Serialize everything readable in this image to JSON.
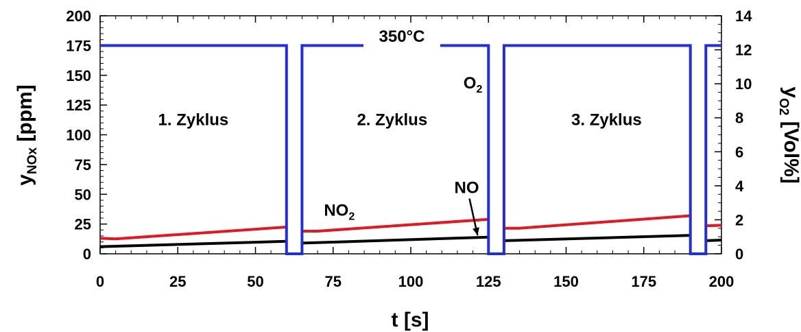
{
  "chart_data": {
    "type": "line",
    "xlabel": {
      "main": "t [s]"
    },
    "ylabel_left": {
      "main": "y",
      "sub": "NOx",
      "unit": " [ppm]"
    },
    "ylabel_right": {
      "main": "y",
      "sub": "O2",
      "unit": " [Vol%]"
    },
    "xlim": [
      0,
      200
    ],
    "ylim_left": [
      0,
      200
    ],
    "ylim_right": [
      0,
      14
    ],
    "x_ticks": [
      "0",
      "25",
      "50",
      "75",
      "100",
      "125",
      "150",
      "175",
      "200"
    ],
    "y_left_ticks": [
      "0",
      "25",
      "50",
      "75",
      "100",
      "125",
      "150",
      "175",
      "200"
    ],
    "y_right_ticks": [
      "0",
      "2",
      "4",
      "6",
      "8",
      "10",
      "12",
      "14"
    ],
    "grid": false,
    "series": [
      {
        "name": "O2",
        "axis": "right",
        "color": "#1f2ee0",
        "x": [
          0,
          60,
          60,
          65,
          65,
          125,
          125,
          130,
          130,
          190,
          190,
          195,
          195,
          200
        ],
        "y": [
          12.25,
          12.25,
          0,
          0,
          12.25,
          12.25,
          0,
          0,
          12.25,
          12.25,
          0,
          0,
          12.25,
          12.25
        ]
      },
      {
        "name": "NO2",
        "axis": "left",
        "color": "#e8141e",
        "segments": [
          {
            "x": [
              0,
              5,
              60
            ],
            "y": [
              13,
              12.5,
              22.5
            ]
          },
          {
            "x": [
              65,
              70,
              125
            ],
            "y": [
              19,
              19,
              29
            ]
          },
          {
            "x": [
              130,
              135,
              190
            ],
            "y": [
              21.5,
              21.5,
              32
            ]
          },
          {
            "x": [
              195,
              200
            ],
            "y": [
              23.5,
              24
            ]
          }
        ]
      },
      {
        "name": "NO",
        "axis": "left",
        "color": "#000000",
        "segments": [
          {
            "x": [
              0,
              60
            ],
            "y": [
              6,
              10.5
            ]
          },
          {
            "x": [
              65,
              125
            ],
            "y": [
              9,
              14
            ]
          },
          {
            "x": [
              130,
              190
            ],
            "y": [
              11,
              15.5
            ]
          },
          {
            "x": [
              195,
              200
            ],
            "y": [
              11,
              11.5
            ]
          }
        ]
      }
    ],
    "annotations": {
      "temperature": "350°C",
      "cycles": [
        {
          "label": "1. Zyklus",
          "x": 30,
          "y": 108
        },
        {
          "label": "2. Zyklus",
          "x": 94,
          "y": 108
        },
        {
          "label": "3. Zyklus",
          "x": 163,
          "y": 108
        }
      ],
      "no2_label": {
        "main": "NO",
        "sub": "2",
        "x": 77,
        "y": 32
      },
      "o2_label": {
        "main": "O",
        "sub": "2",
        "x": 120,
        "y": 139
      },
      "no_label": {
        "text": "NO",
        "x": 118,
        "y": 51
      }
    }
  }
}
